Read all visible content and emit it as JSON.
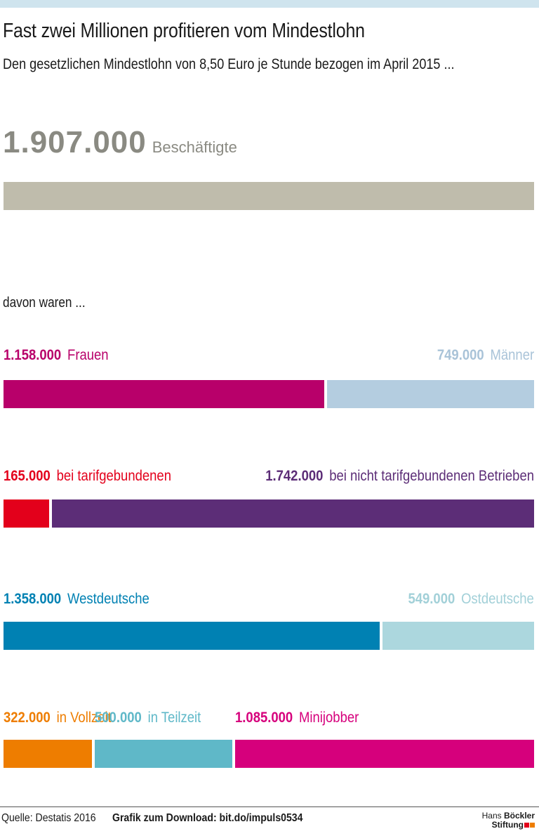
{
  "header": {
    "title": "Fast zwei Millionen profitieren vom Mindestlohn",
    "subtitle": "Den gesetzlichen Mindestlohn von 8,50 Euro je Stunde bezogen im April 2015 ..."
  },
  "total": {
    "value_text": "1.907.000",
    "label": "Beschäftigte",
    "value": 1907000,
    "color": "#bfbcac"
  },
  "intro": "davon waren ...",
  "chart_data": {
    "type": "bar",
    "stacked": true,
    "orientation": "horizontal",
    "title": "Fast zwei Millionen profitieren vom Mindestlohn",
    "total": 1907000,
    "groups": [
      {
        "segments": [
          {
            "value_text": "1.158.000",
            "label": "Frauen",
            "value": 1158000,
            "color": "#b8006a",
            "label_color": "#b8006a"
          },
          {
            "value_text": "749.000",
            "label": "Männer",
            "value": 749000,
            "color": "#b4cde0",
            "label_color": "#a9c3d8"
          }
        ]
      },
      {
        "segments": [
          {
            "value_text": "165.000",
            "label": "bei tarifgebundenen",
            "value": 165000,
            "color": "#e3001b",
            "label_color": "#e3001b"
          },
          {
            "value_text": "1.742.000",
            "label": "bei nicht tarifgebundenen Betrieben",
            "value": 1742000,
            "color": "#5c2d77",
            "label_color": "#5c2d77"
          }
        ]
      },
      {
        "segments": [
          {
            "value_text": "1.358.000",
            "label": "Westdeutsche",
            "value": 1358000,
            "color": "#0081b3",
            "label_color": "#0081b3"
          },
          {
            "value_text": "549.000",
            "label": "Ostdeutsche",
            "value": 549000,
            "color": "#acd7de",
            "label_color": "#a2d0d8"
          }
        ]
      },
      {
        "segments": [
          {
            "value_text": "322.000",
            "label": "in Vollzeit",
            "value": 322000,
            "color": "#ee7d00",
            "label_color": "#ee7d00"
          },
          {
            "value_text": "500.000",
            "label": "in Teilzeit",
            "value": 500000,
            "color": "#5fb8c8",
            "label_color": "#5fb8c8"
          },
          {
            "value_text": "1.085.000",
            "label": "Minijobber",
            "value": 1085000,
            "color": "#d6007c",
            "label_color": "#d6007c"
          }
        ]
      }
    ]
  },
  "footer": {
    "source": "Quelle: Destatis 2016",
    "download": "Grafik zum Download: bit.do/impuls0534",
    "logo_line1_a": "Hans",
    "logo_line1_b": "Böckler",
    "logo_line2": "Stiftung",
    "logo_colors": [
      "#e3001b",
      "#ee7d00"
    ]
  }
}
